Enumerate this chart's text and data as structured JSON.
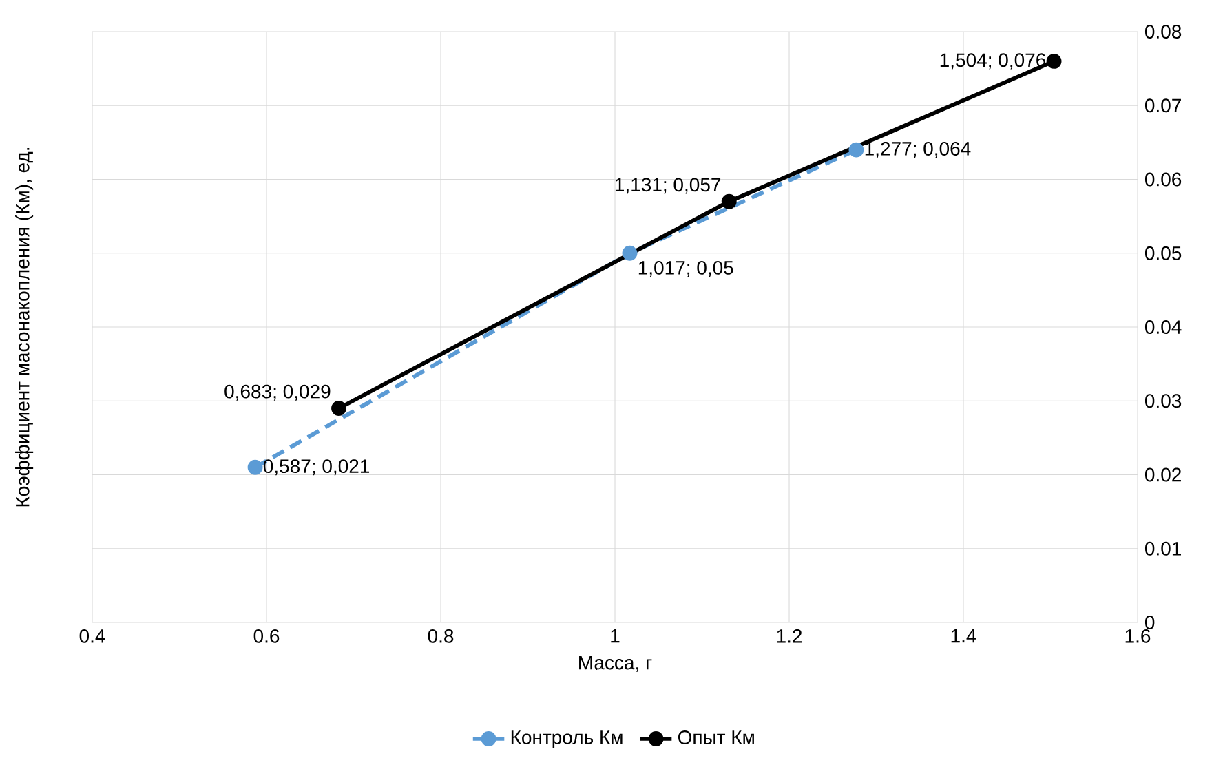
{
  "chart_data": {
    "type": "line",
    "xlabel": "Масса, г",
    "ylabel": "Коэффициент масонакопления (Км), ед.",
    "xlim": [
      0.4,
      1.6
    ],
    "xticks": [
      0.4,
      0.6,
      0.8,
      1,
      1.2,
      1.4,
      1.6
    ],
    "ylim": [
      0,
      0.08
    ],
    "yticks": [
      0,
      0.01,
      0.02,
      0.03,
      0.04,
      0.05,
      0.06,
      0.07,
      0.08
    ],
    "grid": true,
    "legend": "bottom",
    "marker": "circle",
    "series": [
      {
        "name": "Контроль Км",
        "color": "#5b9bd5",
        "line_style": "dashed",
        "x": [
          0.587,
          1.017,
          1.277
        ],
        "values": [
          0.021,
          0.05,
          0.064
        ],
        "value_labels": [
          "0,587; 0,021",
          "1,017; 0,05",
          "1,277; 0,064"
        ]
      },
      {
        "name": "Опыт  Км",
        "color": "#000000",
        "line_style": "solid",
        "x": [
          0.683,
          1.131,
          1.504
        ],
        "values": [
          0.029,
          0.057,
          0.076
        ],
        "value_labels": [
          "0,683; 0,029",
          "1,131; 0,057",
          "1,504; 0,076"
        ]
      }
    ]
  }
}
